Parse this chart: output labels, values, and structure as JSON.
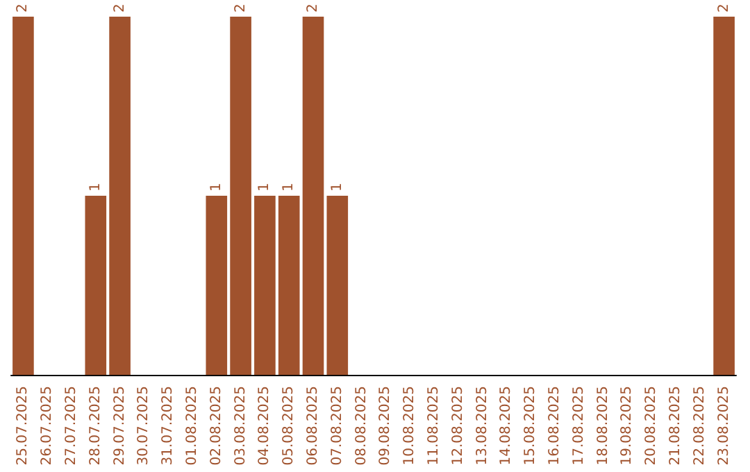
{
  "chart_data": {
    "type": "bar",
    "categories": [
      "25.07.2025",
      "26.07.2025",
      "27.07.2025",
      "28.07.2025",
      "29.07.2025",
      "30.07.2025",
      "31.07.2025",
      "01.08.2025",
      "02.08.2025",
      "03.08.2025",
      "04.08.2025",
      "05.08.2025",
      "06.08.2025",
      "07.08.2025",
      "08.08.2025",
      "09.08.2025",
      "10.08.2025",
      "11.08.2025",
      "12.08.2025",
      "13.08.2025",
      "14.08.2025",
      "15.08.2025",
      "16.08.2025",
      "17.08.2025",
      "18.08.2025",
      "19.08.2025",
      "20.08.2025",
      "21.08.2025",
      "22.08.2025",
      "23.08.2025"
    ],
    "values": [
      2,
      null,
      null,
      1,
      2,
      null,
      null,
      null,
      1,
      2,
      1,
      1,
      2,
      1,
      null,
      null,
      null,
      null,
      null,
      null,
      null,
      null,
      null,
      null,
      null,
      null,
      null,
      null,
      null,
      2
    ],
    "color": "#a0522d",
    "data_labels": true
  }
}
